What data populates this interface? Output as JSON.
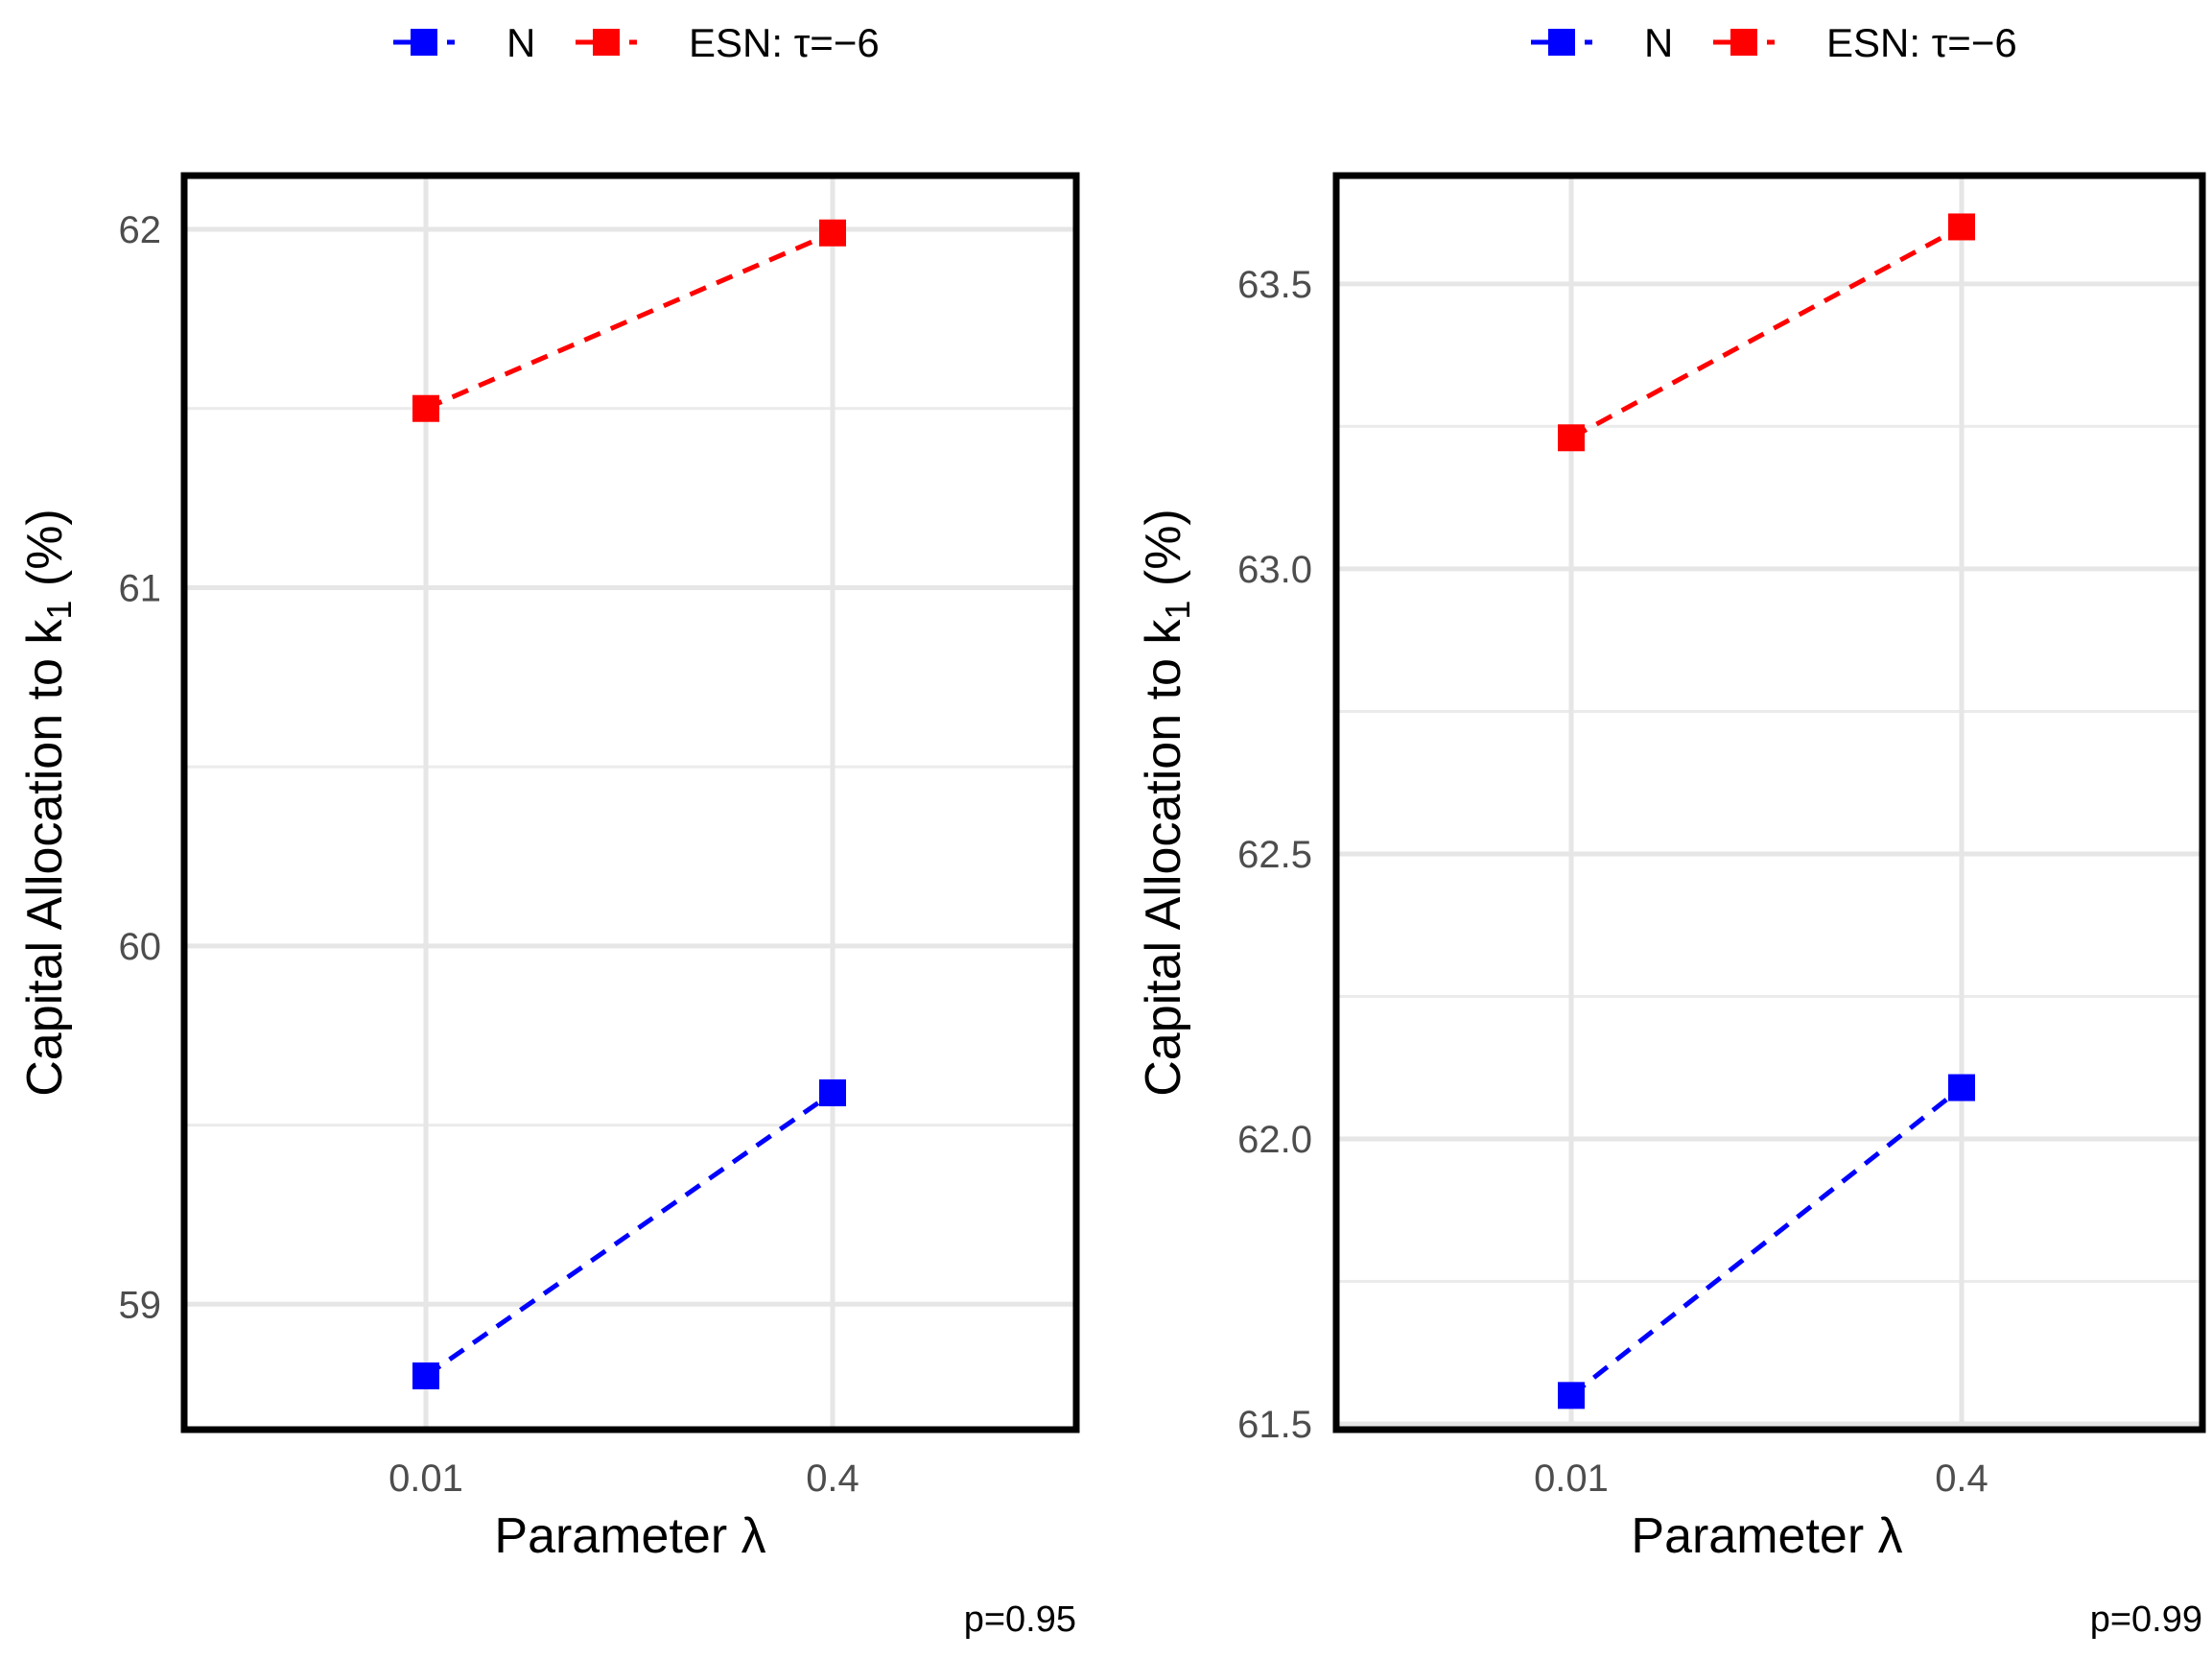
{
  "chart_data": [
    {
      "type": "line",
      "caption": "p=0.95",
      "xlabel": "Parameter λ",
      "ylabel_prefix": "Capital Allocation to  k",
      "ylabel_subscript": "1",
      "ylabel_suffix": " (%)",
      "categories": [
        "0.01",
        "0.4"
      ],
      "ylim": [
        58.65,
        62.15
      ],
      "yticks": [
        59,
        60,
        61,
        62
      ],
      "yticklabels": [
        "59",
        "60",
        "61",
        "62"
      ],
      "yminor": [
        59.5,
        60.5,
        61.5
      ],
      "grid": true,
      "legend_position": "top",
      "series": [
        {
          "name": "N",
          "color": "#0000ff",
          "values": [
            58.8,
            59.59
          ]
        },
        {
          "name": "ESN: τ=−6",
          "color": "#ff0000",
          "values": [
            61.5,
            61.99
          ]
        }
      ]
    },
    {
      "type": "line",
      "caption": "p=0.99",
      "xlabel": "Parameter λ",
      "ylabel_prefix": "Capital Allocation to  k",
      "ylabel_subscript": "1",
      "ylabel_suffix": " (%)",
      "categories": [
        "0.01",
        "0.4"
      ],
      "ylim": [
        61.49,
        63.69
      ],
      "yticks": [
        61.5,
        62.0,
        62.5,
        63.0,
        63.5
      ],
      "yticklabels": [
        "61.5",
        "62.0",
        "62.5",
        "63.0",
        "63.5"
      ],
      "yminor": [
        61.75,
        62.25,
        62.75,
        63.25
      ],
      "grid": true,
      "legend_position": "top",
      "series": [
        {
          "name": "N",
          "color": "#0000ff",
          "values": [
            61.55,
            62.09
          ]
        },
        {
          "name": "ESN: τ=−6",
          "color": "#ff0000",
          "values": [
            63.23,
            63.6
          ]
        }
      ]
    }
  ]
}
